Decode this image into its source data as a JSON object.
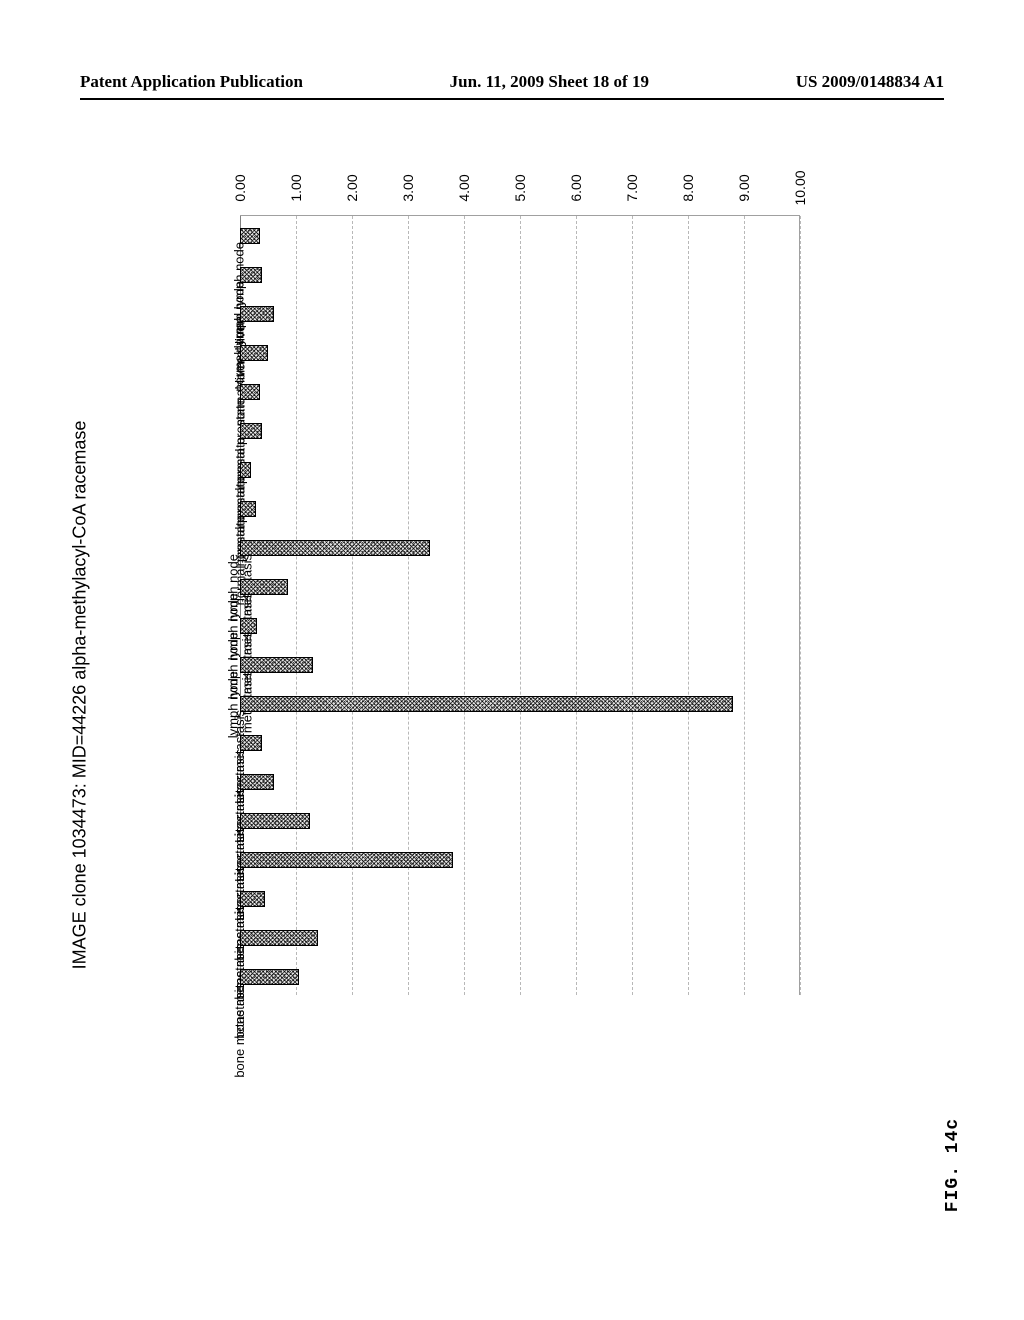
{
  "header": {
    "left": "Patent Application Publication",
    "center": "Jun. 11, 2009  Sheet 18 of 19",
    "right": "US 2009/0148834 A1"
  },
  "figure_label": "FIG. 14c",
  "chart": {
    "type": "bar",
    "orientation": "horizontal",
    "title": "IMAGE clone 1034473:  MID=44226 alpha-methylacyl-CoA racemase",
    "title_fontsize": 18,
    "label_fontsize": 13,
    "tick_fontsize": 14,
    "background_color": "#ffffff",
    "grid_color": "#b8b8b8",
    "axis_color": "#808080",
    "bar_border_color": "#000000",
    "bar_fill_color": "#e2e2e2",
    "bar_pattern": "noise-crosshatch",
    "ylim": [
      0,
      10
    ],
    "ytick_step": 1,
    "ytick_labels": [
      "0.00",
      "1.00",
      "2.00",
      "3.00",
      "4.00",
      "5.00",
      "6.00",
      "7.00",
      "8.00",
      "9.00",
      "10.00"
    ],
    "categories": [
      {
        "label": "normal lymph node",
        "value": 0.35
      },
      {
        "label": "normal lymph node",
        "value": 0.4
      },
      {
        "label": "normal liver",
        "value": 0.6
      },
      {
        "label": "normal liver",
        "value": 0.5
      },
      {
        "label": "normal prostate",
        "value": 0.35
      },
      {
        "label": "normal prostate",
        "value": 0.4
      },
      {
        "label": "normal prostate",
        "value": 0.2
      },
      {
        "label": "normal prostate",
        "value": 0.28
      },
      {
        "label": "lymph node\nmetastasis",
        "value": 3.4
      },
      {
        "label": "lymph node\nmetastasis",
        "value": 0.85
      },
      {
        "label": "lymph node\nmetastasis",
        "value": 0.3
      },
      {
        "label": "lymph node\nmetastasis",
        "value": 1.3
      },
      {
        "label": "Liver metastasis",
        "value": 8.8
      },
      {
        "label": "Liver metastasis",
        "value": 0.4
      },
      {
        "label": "Liver metastasis",
        "value": 0.6
      },
      {
        "label": "Liver metastasis",
        "value": 1.25
      },
      {
        "label": "bone metastasis",
        "value": 3.8
      },
      {
        "label": "bone metastasis",
        "value": 0.45
      },
      {
        "label": "bone metastasis",
        "value": 1.4
      },
      {
        "label": "bone metastasis",
        "value": 1.05
      }
    ]
  }
}
